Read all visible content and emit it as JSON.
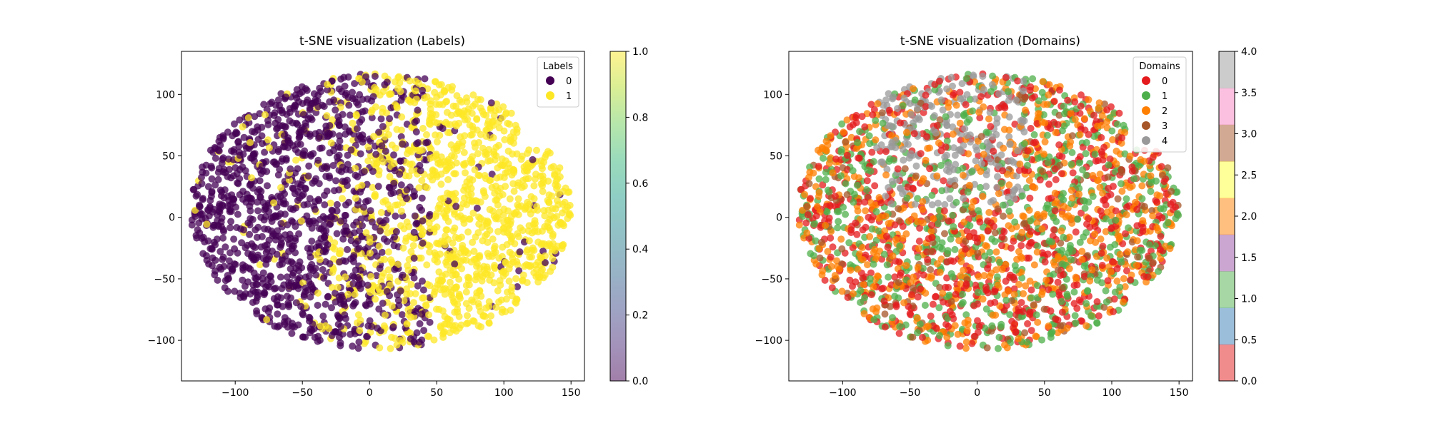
{
  "chart_data": [
    {
      "type": "scatter",
      "title": "t-SNE visualization (Labels)",
      "xlabel": "",
      "ylabel": "",
      "xlim": [
        -140,
        160
      ],
      "ylim": [
        -133,
        135
      ],
      "xticks": [
        -100,
        -50,
        0,
        50,
        100,
        150
      ],
      "yticks": [
        -100,
        -50,
        0,
        50,
        100
      ],
      "xtick_labels": [
        "−100",
        "−50",
        "0",
        "50",
        "100",
        "150"
      ],
      "ytick_labels": [
        "−100",
        "−50",
        "0",
        "50",
        "100"
      ],
      "legend": {
        "title": "Labels",
        "placement": "top-right",
        "entries": [
          "0",
          "1"
        ]
      },
      "series": [
        {
          "name": "0",
          "color": "#440154",
          "region": "left and center of the embedding"
        },
        {
          "name": "1",
          "color": "#fde725",
          "region": "right side of the embedding (x 40 to 145) plus mixed center"
        }
      ],
      "colorbar": {
        "cmap": "viridis",
        "alpha": 0.5,
        "range": [
          0.0,
          1.0
        ],
        "tick_labels": [
          "0.0",
          "0.2",
          "0.4",
          "0.6",
          "0.8",
          "1.0"
        ]
      },
      "grid": false
    },
    {
      "type": "scatter",
      "title": "t-SNE visualization (Domains)",
      "xlabel": "",
      "ylabel": "",
      "xlim": [
        -140,
        160
      ],
      "ylim": [
        -133,
        135
      ],
      "xticks": [
        -100,
        -50,
        0,
        50,
        100,
        150
      ],
      "yticks": [
        -100,
        -50,
        0,
        50,
        100
      ],
      "xtick_labels": [
        "−100",
        "−50",
        "0",
        "50",
        "100",
        "150"
      ],
      "ytick_labels": [
        "−100",
        "−50",
        "0",
        "50",
        "100"
      ],
      "legend": {
        "title": "Domains",
        "placement": "top-right",
        "entries": [
          "0",
          "1",
          "2",
          "3",
          "4"
        ]
      },
      "series": [
        {
          "name": "0",
          "color": "#e41a1c"
        },
        {
          "name": "1",
          "color": "#4daf4a"
        },
        {
          "name": "2",
          "color": "#ff7f00"
        },
        {
          "name": "3",
          "color": "#a65628"
        },
        {
          "name": "4",
          "color": "#999999",
          "region": "concentrated in upper-center of the embedding"
        }
      ],
      "colorbar": {
        "cmap": "Set1",
        "alpha": 0.5,
        "range": [
          0.0,
          4.0
        ],
        "tick_labels": [
          "0.0",
          "0.5",
          "1.0",
          "1.5",
          "2.0",
          "2.5",
          "3.0",
          "3.5",
          "4.0"
        ],
        "colors": [
          "#e41a1c",
          "#377eb8",
          "#4daf4a",
          "#984ea3",
          "#ff7f00",
          "#ffff33",
          "#a65628",
          "#f781bf",
          "#999999"
        ]
      },
      "grid": false
    }
  ]
}
